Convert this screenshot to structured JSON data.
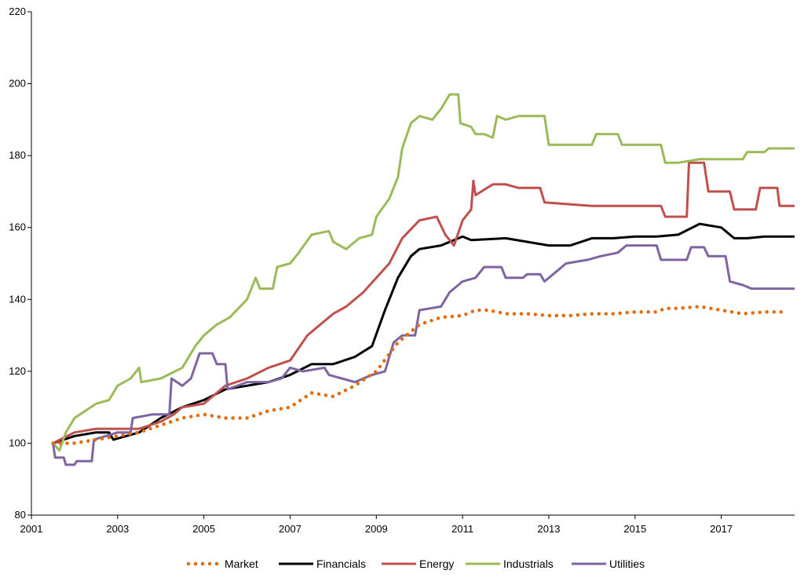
{
  "chart_data": {
    "type": "line",
    "title": "",
    "xlabel": "",
    "ylabel": "",
    "xlim": [
      2001,
      2018.7
    ],
    "ylim": [
      80,
      220
    ],
    "x_ticks": [
      2001,
      2003,
      2005,
      2007,
      2009,
      2011,
      2013,
      2015,
      2017
    ],
    "x_tick_labels": [
      "2001",
      "2003",
      "2005",
      "2007",
      "2009",
      "2011",
      "2013",
      "2015",
      "2017"
    ],
    "y_ticks": [
      80,
      100,
      120,
      140,
      160,
      180,
      200,
      220
    ],
    "y_tick_labels": [
      "80",
      "100",
      "120",
      "140",
      "160",
      "180",
      "200",
      "220"
    ],
    "grid": false,
    "legend_position": "bottom",
    "series": [
      {
        "name": "Market",
        "color": "#e36c0a",
        "style": "dotted",
        "points": [
          [
            2001.5,
            100
          ],
          [
            2002.0,
            100
          ],
          [
            2002.5,
            101
          ],
          [
            2003.0,
            102
          ],
          [
            2003.5,
            103
          ],
          [
            2004.0,
            105
          ],
          [
            2004.5,
            107
          ],
          [
            2005.0,
            108
          ],
          [
            2005.5,
            107
          ],
          [
            2006.0,
            107
          ],
          [
            2006.5,
            109
          ],
          [
            2007.0,
            110
          ],
          [
            2007.5,
            114
          ],
          [
            2008.0,
            113
          ],
          [
            2008.5,
            116
          ],
          [
            2009.0,
            120
          ],
          [
            2009.5,
            128
          ],
          [
            2010.0,
            133
          ],
          [
            2010.5,
            135
          ],
          [
            2011.0,
            135.5
          ],
          [
            2011.3,
            137
          ],
          [
            2011.6,
            137
          ],
          [
            2012.0,
            136
          ],
          [
            2012.5,
            136
          ],
          [
            2013.0,
            135.5
          ],
          [
            2013.5,
            135.5
          ],
          [
            2014.0,
            136
          ],
          [
            2014.5,
            136
          ],
          [
            2015.0,
            136.5
          ],
          [
            2015.5,
            136.5
          ],
          [
            2015.7,
            137.5
          ],
          [
            2016.0,
            137.5
          ],
          [
            2016.5,
            138
          ],
          [
            2017.0,
            137
          ],
          [
            2017.5,
            136
          ],
          [
            2018.0,
            136.5
          ],
          [
            2018.5,
            136.5
          ]
        ]
      },
      {
        "name": "Financials",
        "color": "#000000",
        "style": "solid",
        "points": [
          [
            2001.5,
            100
          ],
          [
            2002.0,
            102
          ],
          [
            2002.5,
            103
          ],
          [
            2002.8,
            103
          ],
          [
            2002.9,
            101
          ],
          [
            2003.5,
            103
          ],
          [
            2004.0,
            107
          ],
          [
            2004.5,
            110
          ],
          [
            2005.0,
            112
          ],
          [
            2005.5,
            115
          ],
          [
            2006.0,
            116
          ],
          [
            2006.5,
            117
          ],
          [
            2007.0,
            119
          ],
          [
            2007.5,
            122
          ],
          [
            2008.0,
            122
          ],
          [
            2008.5,
            124
          ],
          [
            2008.9,
            127
          ],
          [
            2009.2,
            137
          ],
          [
            2009.5,
            146
          ],
          [
            2009.8,
            152
          ],
          [
            2010.0,
            154
          ],
          [
            2010.5,
            155
          ],
          [
            2011.0,
            157.5
          ],
          [
            2011.2,
            156.5
          ],
          [
            2012.0,
            157
          ],
          [
            2012.5,
            156
          ],
          [
            2013.0,
            155
          ],
          [
            2013.5,
            155
          ],
          [
            2014.0,
            157
          ],
          [
            2014.5,
            157
          ],
          [
            2015.0,
            157.5
          ],
          [
            2015.5,
            157.5
          ],
          [
            2016.0,
            158
          ],
          [
            2016.5,
            161
          ],
          [
            2017.0,
            160
          ],
          [
            2017.3,
            157
          ],
          [
            2017.6,
            157
          ],
          [
            2018.0,
            157.5
          ],
          [
            2018.7,
            157.5
          ]
        ]
      },
      {
        "name": "Energy",
        "color": "#c0504d",
        "style": "solid",
        "points": [
          [
            2001.5,
            100
          ],
          [
            2002.0,
            103
          ],
          [
            2002.5,
            104
          ],
          [
            2003.0,
            104
          ],
          [
            2003.5,
            104
          ],
          [
            2004.0,
            106
          ],
          [
            2004.3,
            108
          ],
          [
            2004.5,
            110
          ],
          [
            2005.0,
            111
          ],
          [
            2005.5,
            116
          ],
          [
            2006.0,
            118
          ],
          [
            2006.5,
            121
          ],
          [
            2007.0,
            123
          ],
          [
            2007.4,
            130
          ],
          [
            2007.7,
            133
          ],
          [
            2008.0,
            136
          ],
          [
            2008.3,
            138
          ],
          [
            2008.7,
            142
          ],
          [
            2009.0,
            146
          ],
          [
            2009.3,
            150
          ],
          [
            2009.6,
            157
          ],
          [
            2010.0,
            162
          ],
          [
            2010.4,
            163
          ],
          [
            2010.6,
            158
          ],
          [
            2010.8,
            155
          ],
          [
            2011.0,
            162
          ],
          [
            2011.2,
            165
          ],
          [
            2011.25,
            173
          ],
          [
            2011.3,
            169
          ],
          [
            2011.7,
            172
          ],
          [
            2012.0,
            172
          ],
          [
            2012.3,
            171
          ],
          [
            2012.8,
            171
          ],
          [
            2012.9,
            167
          ],
          [
            2014.0,
            166
          ],
          [
            2015.0,
            166
          ],
          [
            2015.6,
            166
          ],
          [
            2015.7,
            163
          ],
          [
            2016.2,
            163
          ],
          [
            2016.25,
            178
          ],
          [
            2016.6,
            178
          ],
          [
            2016.7,
            170
          ],
          [
            2017.2,
            170
          ],
          [
            2017.3,
            165
          ],
          [
            2017.8,
            165
          ],
          [
            2017.9,
            171
          ],
          [
            2018.3,
            171
          ],
          [
            2018.35,
            166
          ],
          [
            2018.7,
            166
          ]
        ]
      },
      {
        "name": "Industrials",
        "color": "#9bbb59",
        "style": "solid",
        "points": [
          [
            2001.5,
            100
          ],
          [
            2001.65,
            98
          ],
          [
            2001.8,
            103
          ],
          [
            2002.0,
            107
          ],
          [
            2002.5,
            111
          ],
          [
            2002.8,
            112
          ],
          [
            2003.0,
            116
          ],
          [
            2003.3,
            118
          ],
          [
            2003.5,
            121
          ],
          [
            2003.55,
            117
          ],
          [
            2004.0,
            118
          ],
          [
            2004.5,
            121
          ],
          [
            2004.8,
            127
          ],
          [
            2005.0,
            130
          ],
          [
            2005.3,
            133
          ],
          [
            2005.6,
            135
          ],
          [
            2006.0,
            140
          ],
          [
            2006.2,
            146
          ],
          [
            2006.3,
            143
          ],
          [
            2006.6,
            143
          ],
          [
            2006.7,
            149
          ],
          [
            2007.0,
            150
          ],
          [
            2007.2,
            153
          ],
          [
            2007.5,
            158
          ],
          [
            2007.9,
            159
          ],
          [
            2008.0,
            156
          ],
          [
            2008.3,
            154
          ],
          [
            2008.6,
            157
          ],
          [
            2008.9,
            158
          ],
          [
            2009.0,
            163
          ],
          [
            2009.3,
            168
          ],
          [
            2009.5,
            174
          ],
          [
            2009.6,
            182
          ],
          [
            2009.8,
            189
          ],
          [
            2010.0,
            191
          ],
          [
            2010.3,
            190
          ],
          [
            2010.5,
            193
          ],
          [
            2010.7,
            197
          ],
          [
            2010.9,
            197
          ],
          [
            2010.95,
            189
          ],
          [
            2011.2,
            188
          ],
          [
            2011.3,
            186
          ],
          [
            2011.5,
            186
          ],
          [
            2011.7,
            185
          ],
          [
            2011.8,
            191
          ],
          [
            2012.0,
            190
          ],
          [
            2012.3,
            191
          ],
          [
            2012.9,
            191
          ],
          [
            2013.0,
            183
          ],
          [
            2014.0,
            183
          ],
          [
            2014.1,
            186
          ],
          [
            2014.6,
            186
          ],
          [
            2014.7,
            183
          ],
          [
            2015.0,
            183
          ],
          [
            2015.6,
            183
          ],
          [
            2015.7,
            178
          ],
          [
            2016.0,
            178
          ],
          [
            2016.5,
            179
          ],
          [
            2017.0,
            179
          ],
          [
            2017.5,
            179
          ],
          [
            2017.6,
            181
          ],
          [
            2018.0,
            181
          ],
          [
            2018.1,
            182
          ],
          [
            2018.7,
            182
          ]
        ]
      },
      {
        "name": "Utilities",
        "color": "#8064a2",
        "style": "solid",
        "points": [
          [
            2001.5,
            100
          ],
          [
            2001.55,
            96
          ],
          [
            2001.75,
            96
          ],
          [
            2001.8,
            94
          ],
          [
            2002.0,
            94
          ],
          [
            2002.05,
            95
          ],
          [
            2002.4,
            95
          ],
          [
            2002.45,
            101
          ],
          [
            2003.0,
            103
          ],
          [
            2003.3,
            103
          ],
          [
            2003.35,
            107
          ],
          [
            2003.8,
            108
          ],
          [
            2004.0,
            108
          ],
          [
            2004.2,
            108
          ],
          [
            2004.25,
            118
          ],
          [
            2004.5,
            116
          ],
          [
            2004.7,
            118
          ],
          [
            2004.9,
            125
          ],
          [
            2005.2,
            125
          ],
          [
            2005.3,
            122
          ],
          [
            2005.5,
            122
          ],
          [
            2005.55,
            115
          ],
          [
            2006.0,
            117
          ],
          [
            2006.5,
            117
          ],
          [
            2006.8,
            118
          ],
          [
            2007.0,
            121
          ],
          [
            2007.3,
            120
          ],
          [
            2007.8,
            121
          ],
          [
            2007.9,
            119
          ],
          [
            2008.2,
            118
          ],
          [
            2008.5,
            117
          ],
          [
            2008.9,
            119
          ],
          [
            2009.2,
            120
          ],
          [
            2009.4,
            128
          ],
          [
            2009.6,
            130
          ],
          [
            2009.9,
            130
          ],
          [
            2010.0,
            137
          ],
          [
            2010.5,
            138
          ],
          [
            2010.7,
            142
          ],
          [
            2011.0,
            145
          ],
          [
            2011.3,
            146
          ],
          [
            2011.5,
            149
          ],
          [
            2011.9,
            149
          ],
          [
            2012.0,
            146
          ],
          [
            2012.4,
            146
          ],
          [
            2012.5,
            147
          ],
          [
            2012.8,
            147
          ],
          [
            2012.9,
            145
          ],
          [
            2013.2,
            148
          ],
          [
            2013.4,
            150
          ],
          [
            2013.9,
            151
          ],
          [
            2014.2,
            152
          ],
          [
            2014.6,
            153
          ],
          [
            2014.8,
            155
          ],
          [
            2015.5,
            155
          ],
          [
            2015.6,
            151
          ],
          [
            2016.2,
            151
          ],
          [
            2016.3,
            154.5
          ],
          [
            2016.6,
            154.5
          ],
          [
            2016.7,
            152
          ],
          [
            2017.1,
            152
          ],
          [
            2017.2,
            145
          ],
          [
            2017.5,
            144
          ],
          [
            2017.7,
            143
          ],
          [
            2018.3,
            143
          ],
          [
            2018.7,
            143
          ]
        ]
      }
    ]
  }
}
